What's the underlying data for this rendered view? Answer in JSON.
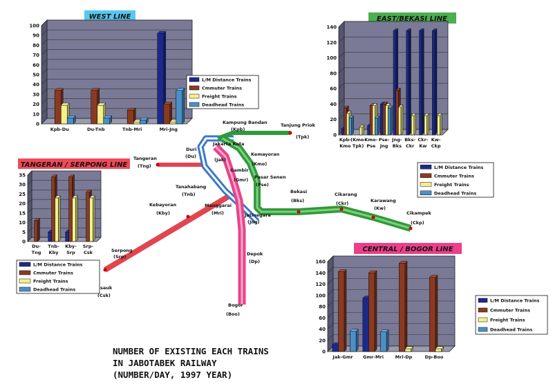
{
  "colors": {
    "ld": "#1a2a8c",
    "commuter": "#8b3a22",
    "freight": "#f4f08a",
    "deadhead": "#4a90c8",
    "plot_back": "#7a7a96",
    "west_badge": "#59c7ee",
    "east_badge": "#4caf50",
    "tangerang_badge": "#f04a58",
    "central_badge": "#ec3f8a",
    "west_route": "#3a78cc",
    "tangerang_route": "#e04550",
    "central_route": "#e8438a",
    "east_route": "#2f9a3a"
  },
  "legend_labels": [
    "L/M Distance Trains",
    "Cmmuter Trains",
    "Freight Trains",
    "Deadhead Trains"
  ],
  "main_title": [
    "NUMBER OF EXISTING EACH TRAINS",
    "IN JABOTABEK RAILWAY",
    "(NUMBER/DAY, 1997 YEAR)"
  ],
  "stations": [
    {
      "name": "Kampung Bandan",
      "code": "(Kpb)"
    },
    {
      "name": "Tanjung Priok",
      "code": "(Tpk)"
    },
    {
      "name": "Duri",
      "code": "(Du)"
    },
    {
      "name": "Jakarta Kota",
      "code": "(Jak)"
    },
    {
      "name": "Kemayoran",
      "code": "(Kmo)"
    },
    {
      "name": "Tangeran",
      "code": "(Tng)"
    },
    {
      "name": "Gambir",
      "code": "(Gmr)"
    },
    {
      "name": "Pasar Senen",
      "code": "(Pse)"
    },
    {
      "name": "Tanahabang",
      "code": "(Tnb)"
    },
    {
      "name": "Bekasi",
      "code": "(Bks)"
    },
    {
      "name": "Cikarang",
      "code": "(Ckr)"
    },
    {
      "name": "Karawang",
      "code": "(Kw)"
    },
    {
      "name": "Cikampek",
      "code": "(Ckp)"
    },
    {
      "name": "Kebayoran",
      "code": "(Kby)"
    },
    {
      "name": "Manggarai",
      "code": "(Mri)"
    },
    {
      "name": "Jatinegara",
      "code": "(Jng)"
    },
    {
      "name": "Serpong",
      "code": "(Srp)"
    },
    {
      "name": "Depok",
      "code": "(Dp)"
    },
    {
      "name": "Cisauk",
      "code": "(Csk)"
    },
    {
      "name": "Bogor",
      "code": "(Boo)"
    }
  ],
  "chart_data": [
    {
      "type": "bar",
      "title": "WEST LINE",
      "categories": [
        "Kpb-Du",
        "Du-Tnb",
        "Tnb-Mri",
        "Mri-Jng"
      ],
      "ylim": [
        0,
        100
      ],
      "yticks": [
        "0",
        "10",
        "20",
        "30",
        "40",
        "50",
        "60",
        "70",
        "80",
        "90",
        "100"
      ],
      "series": [
        {
          "name": "L/M Distance Trains",
          "values": [
            0,
            0,
            0,
            92
          ]
        },
        {
          "name": "Cmmuter Trains",
          "values": [
            34,
            34,
            14,
            20
          ]
        },
        {
          "name": "Freight Trains",
          "values": [
            19,
            19,
            2,
            2
          ]
        },
        {
          "name": "Deadhead Trains",
          "values": [
            6,
            6,
            4,
            34
          ]
        }
      ],
      "legend": "right"
    },
    {
      "type": "bar",
      "title": "EAST/BEKASI LINE",
      "categories": [
        "Kpb-Kmo",
        "(Kmo-Tpk)",
        "Kmo-Pse",
        "Pse-Jng",
        "Jng-Bks",
        "Bks-Ckr",
        "Ckr-Kw",
        "Kw-Ckp"
      ],
      "ylim": [
        0,
        140
      ],
      "yticks": [
        "0",
        "20",
        "40",
        "60",
        "80",
        "100",
        "120",
        "140"
      ],
      "series": [
        {
          "name": "L/M Distance Trains",
          "values": [
            8,
            0,
            12,
            40,
            135,
            135,
            135,
            135
          ]
        },
        {
          "name": "Cmmuter Trains",
          "values": [
            35,
            0,
            38,
            40,
            58,
            0,
            0,
            0
          ]
        },
        {
          "name": "Freight Trains",
          "values": [
            28,
            10,
            38,
            38,
            36,
            25,
            25,
            25
          ]
        },
        {
          "name": "Deadhead Trains",
          "values": [
            22,
            0,
            22,
            35,
            0,
            0,
            0,
            0
          ]
        }
      ],
      "legend": "bottom"
    },
    {
      "type": "bar",
      "title": "TANGERAN / SERPONG LINE",
      "categories": [
        "Du-Tng",
        "Tnb-Kby",
        "Kby-Srp",
        "Srp-Csk"
      ],
      "ylim": [
        0,
        35
      ],
      "yticks": [
        "0",
        "5",
        "10",
        "15",
        "20",
        "25",
        "30",
        "35"
      ],
      "series": [
        {
          "name": "L/M Distance Trains",
          "values": [
            0,
            5,
            5,
            0
          ]
        },
        {
          "name": "Cmmuter Trains",
          "values": [
            11,
            34,
            34,
            26
          ]
        },
        {
          "name": "Freight Trains",
          "values": [
            0,
            23,
            23,
            23
          ]
        },
        {
          "name": "Deadhead Trains",
          "values": [
            0,
            0,
            0,
            0
          ]
        }
      ],
      "legend": "bottom"
    },
    {
      "type": "bar",
      "title": "CENTRAL / BOGOR LINE",
      "categories": [
        "Jak-Gmr",
        "Gmr-Mri",
        "Mri-Dp",
        "Dp-Boo"
      ],
      "ylim": [
        0,
        160
      ],
      "yticks": [
        "0",
        "20",
        "40",
        "60",
        "80",
        "100",
        "120",
        "140",
        "160"
      ],
      "series": [
        {
          "name": "L/M Distance Trains",
          "values": [
            12,
            95,
            0,
            0
          ]
        },
        {
          "name": "Cmmuter Trains",
          "values": [
            142,
            140,
            157,
            132
          ]
        },
        {
          "name": "Freight Trains",
          "values": [
            0,
            0,
            5,
            5
          ]
        },
        {
          "name": "Deadhead Trains",
          "values": [
            36,
            35,
            0,
            0
          ]
        }
      ],
      "legend": "right"
    }
  ]
}
